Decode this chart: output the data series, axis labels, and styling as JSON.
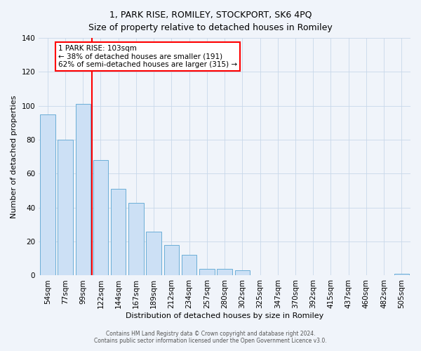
{
  "title": "1, PARK RISE, ROMILEY, STOCKPORT, SK6 4PQ",
  "subtitle": "Size of property relative to detached houses in Romiley",
  "xlabel": "Distribution of detached houses by size in Romiley",
  "ylabel": "Number of detached properties",
  "bar_labels": [
    "54sqm",
    "77sqm",
    "99sqm",
    "122sqm",
    "144sqm",
    "167sqm",
    "189sqm",
    "212sqm",
    "234sqm",
    "257sqm",
    "280sqm",
    "302sqm",
    "325sqm",
    "347sqm",
    "370sqm",
    "392sqm",
    "415sqm",
    "437sqm",
    "460sqm",
    "482sqm",
    "505sqm"
  ],
  "bar_values": [
    95,
    80,
    101,
    68,
    51,
    43,
    26,
    18,
    12,
    4,
    4,
    3,
    0,
    0,
    0,
    0,
    0,
    0,
    0,
    0,
    1
  ],
  "bar_color": "#cce0f5",
  "bar_edge_color": "#6baed6",
  "bar_width": 0.85,
  "vline_x": 2.5,
  "vline_color": "red",
  "ylim": [
    0,
    140
  ],
  "yticks": [
    0,
    20,
    40,
    60,
    80,
    100,
    120,
    140
  ],
  "annotation_title": "1 PARK RISE: 103sqm",
  "annotation_line1": "← 38% of detached houses are smaller (191)",
  "annotation_line2": "62% of semi-detached houses are larger (315) →",
  "footer1": "Contains HM Land Registry data © Crown copyright and database right 2024.",
  "footer2": "Contains public sector information licensed under the Open Government Licence v3.0.",
  "background_color": "#f0f4fa",
  "grid_color": "#c8d8ea",
  "title_fontsize": 9,
  "subtitle_fontsize": 9,
  "axis_label_fontsize": 8,
  "tick_fontsize": 7.5,
  "footer_fontsize": 5.5,
  "annotation_fontsize": 7.5
}
